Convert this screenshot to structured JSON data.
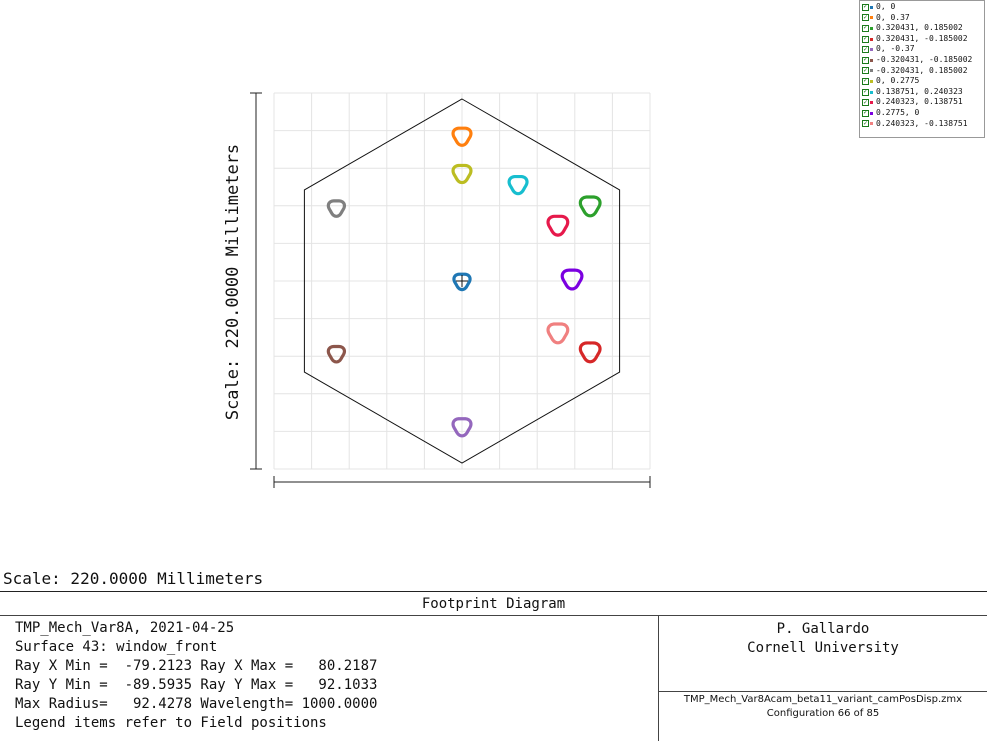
{
  "chart_data": {
    "type": "scatter",
    "title": "Footprint Diagram",
    "xlabel": "Scale: 220.0000 Millimeters",
    "ylabel": "Scale: 220.0000 Millimeters",
    "xlim": [
      -110,
      110
    ],
    "ylim": [
      -110,
      110
    ],
    "grid": true,
    "legend_position": "top-right",
    "aperture_shape": "hexagon",
    "aperture_vertices": [
      [
        0,
        106.5
      ],
      [
        92.2,
        53.3
      ],
      [
        92.2,
        -53.3
      ],
      [
        0,
        -106.5
      ],
      [
        -92.2,
        -53.3
      ],
      [
        -92.2,
        53.3
      ]
    ],
    "series": [
      {
        "name": "0, 0",
        "color": "#1f77b4",
        "center": [
          0,
          0
        ],
        "radius": 4.5
      },
      {
        "name": "0, 0.37",
        "color": "#ff7f0e",
        "center": [
          0,
          85.0
        ],
        "radius": 5
      },
      {
        "name": "0.320431, 0.185002",
        "color": "#2ca02c",
        "center": [
          75.0,
          44.3
        ],
        "radius": 5.5
      },
      {
        "name": "0.320431, -0.185002",
        "color": "#d62728",
        "center": [
          75.0,
          -41.1
        ],
        "radius": 5.5
      },
      {
        "name": "0, -0.37",
        "color": "#9467bd",
        "center": [
          0,
          -85.0
        ],
        "radius": 5
      },
      {
        "name": "-0.320431, -0.185002",
        "color": "#8c564b",
        "center": [
          -73.5,
          -42.3
        ],
        "radius": 4.5
      },
      {
        "name": "-0.320431, 0.185002",
        "color": "#7f7f7f",
        "center": [
          -73.5,
          42.9
        ],
        "radius": 4.5
      },
      {
        "name": "0, 0.2775",
        "color": "#bcbd22",
        "center": [
          0,
          63.2
        ],
        "radius": 5
      },
      {
        "name": "0.138751, 0.240323",
        "color": "#17becf",
        "center": [
          32.8,
          56.7
        ],
        "radius": 5
      },
      {
        "name": "0.240323, 0.138751",
        "color": "#e6194b",
        "center": [
          56.1,
          33.0
        ],
        "radius": 5.5
      },
      {
        "name": "0.2775, 0",
        "color": "#7b00e0",
        "center": [
          64.4,
          1.5
        ],
        "radius": 5.5
      },
      {
        "name": "0.240323, -0.138751",
        "color": "#f08080",
        "center": [
          56.1,
          -30.0
        ],
        "radius": 5.5
      }
    ]
  },
  "header": {
    "scale_label": "Scale: 220.0000 Millimeters"
  },
  "info": {
    "title": "Footprint Diagram",
    "left_lines": [
      "TMP_Mech_Var8A, 2021-04-25",
      "Surface 43: window_front",
      "Ray X Min =  -79.2123 Ray X Max =   80.2187",
      "Ray Y Min =  -89.5935 Ray Y Max =   92.1033",
      "Max Radius=   92.4278 Wavelength= 1000.0000",
      "Legend items refer to Field positions"
    ],
    "author": "P. Gallardo",
    "institution": "Cornell University",
    "file_name": "TMP_Mech_Var8Acam_beta11_variant_camPosDisp.zmx",
    "configuration": "Configuration 66 of 85"
  }
}
